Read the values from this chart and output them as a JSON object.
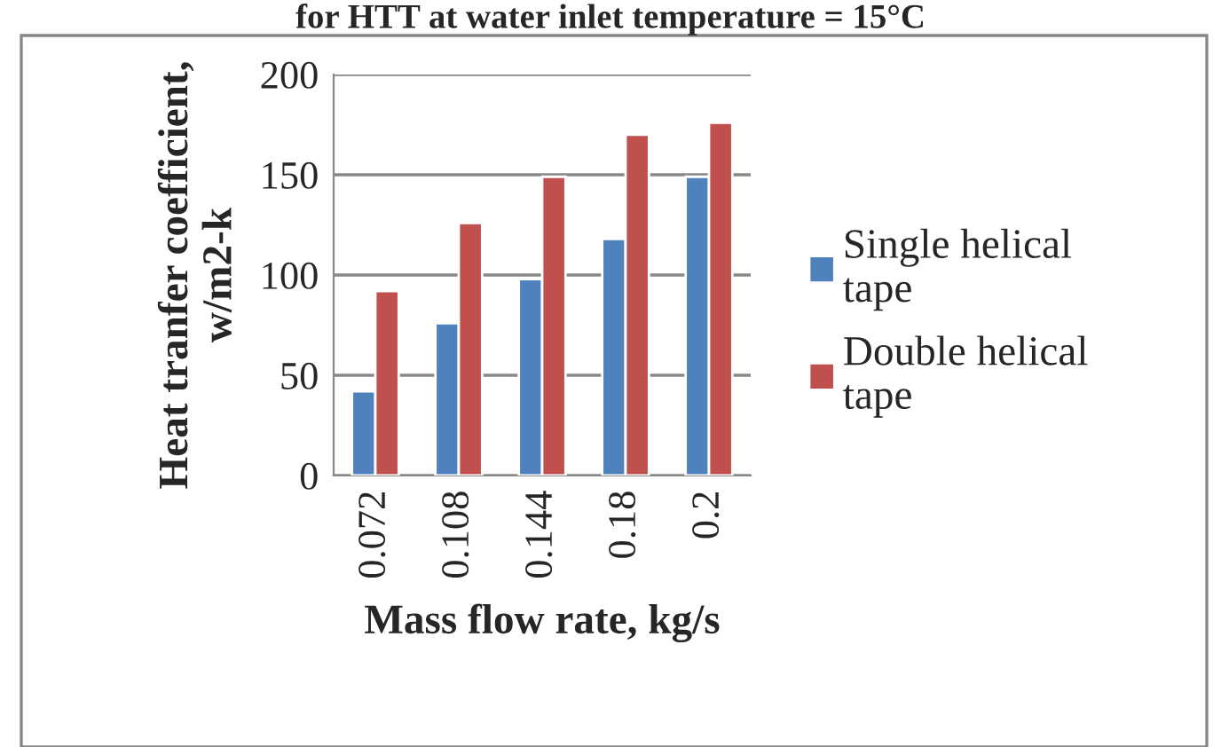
{
  "chart_data": {
    "type": "bar",
    "title": "for HTT at water inlet temperature = 15°C",
    "xlabel": "Mass flow rate, kg/s",
    "ylabel": "Heat tranfer coefficient,\nw/m2-k",
    "categories": [
      "0.072",
      "0.108",
      "0.144",
      "0.18",
      "0.2"
    ],
    "series": [
      {
        "name": "Single helical\ntape",
        "color": "#4f81bd",
        "values": [
          42,
          76,
          98,
          118,
          149
        ]
      },
      {
        "name": "Double helical\ntape",
        "color": "#c0504d",
        "values": [
          92,
          126,
          149,
          170,
          176
        ]
      }
    ],
    "ylim": [
      0,
      200
    ],
    "yticks": [
      0,
      50,
      100,
      150,
      200
    ],
    "grid": "y",
    "legend": "right"
  }
}
